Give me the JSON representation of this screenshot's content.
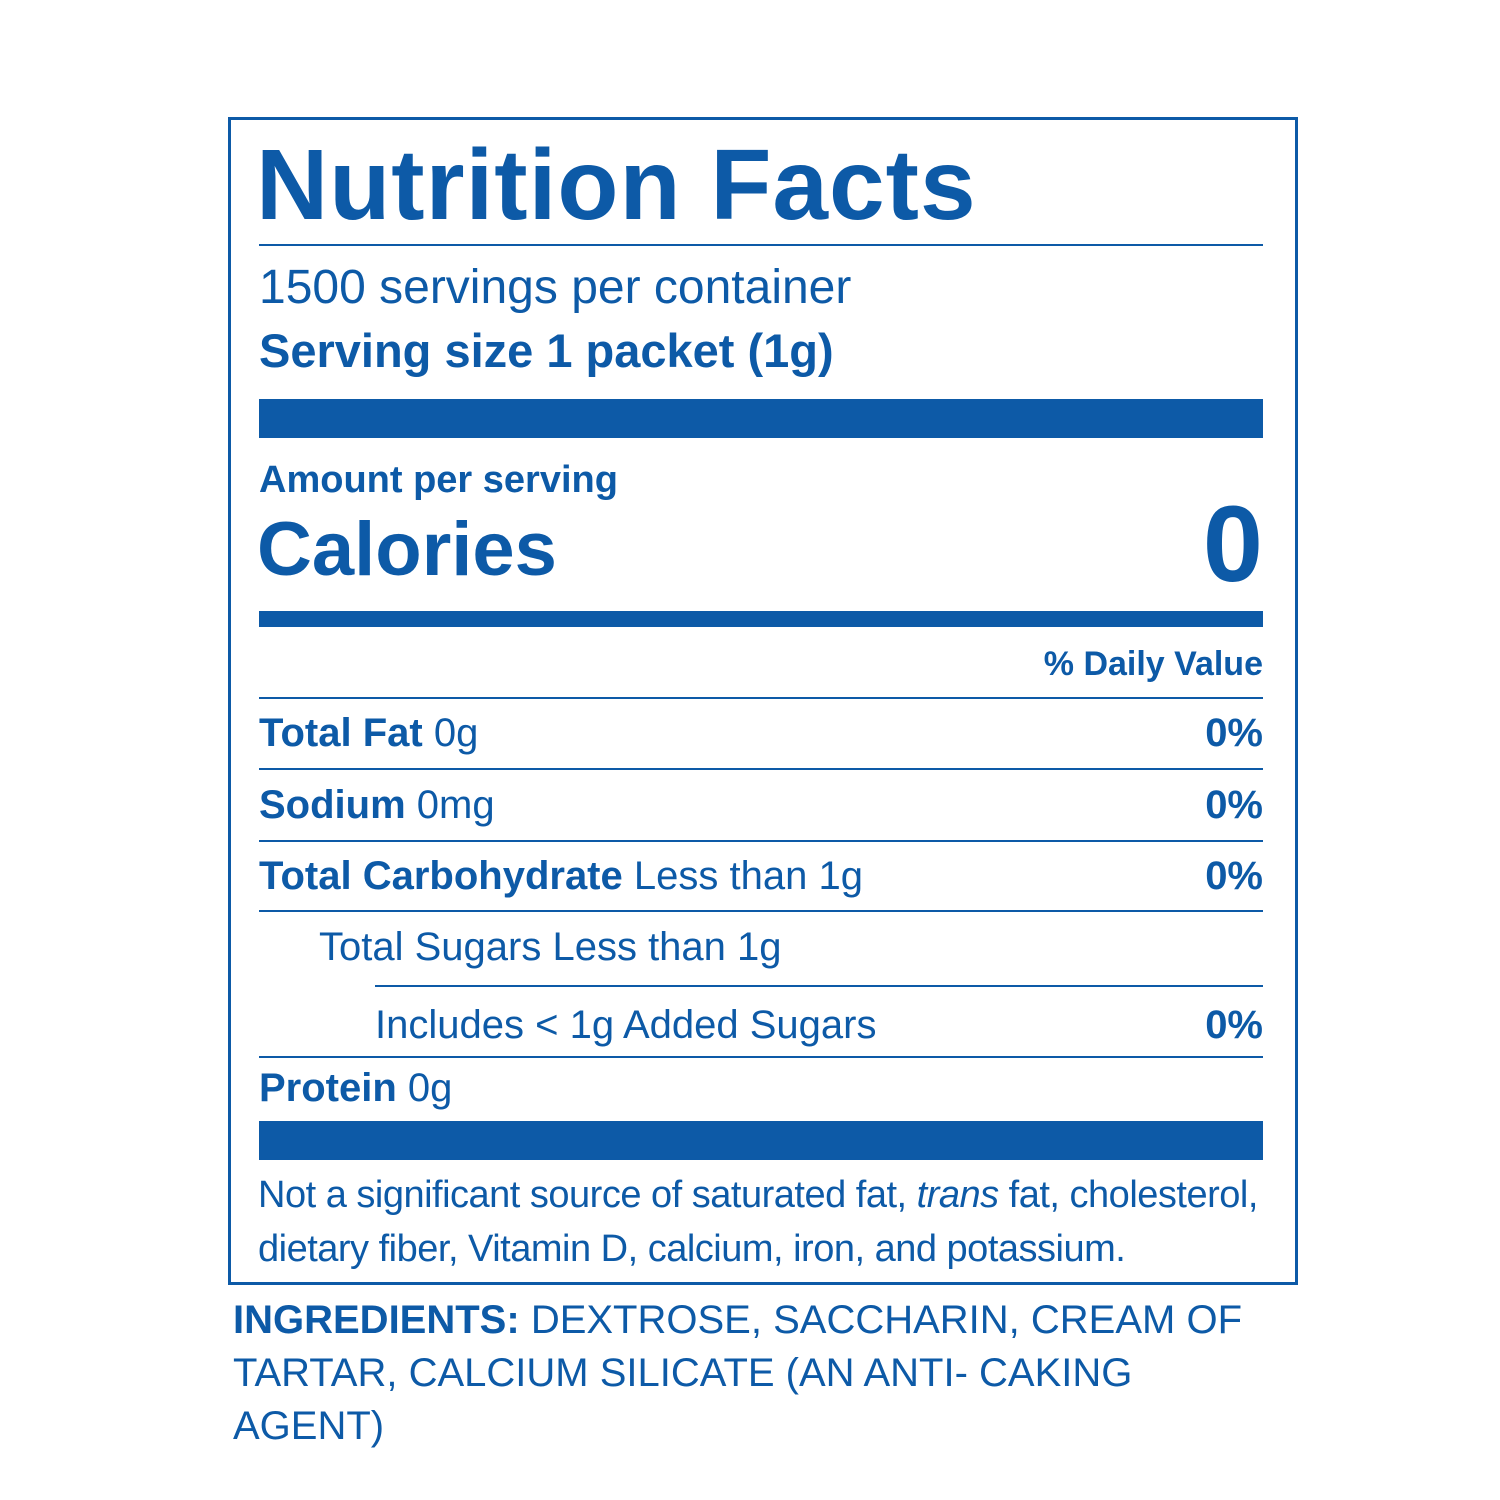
{
  "title": "Nutrition Facts",
  "servings": "1500 servings per container",
  "serving_size": "Serving size 1 packet (1g)",
  "amount_label": "Amount per serving",
  "calories": {
    "label": "Calories",
    "value": "0"
  },
  "dv_header": "% Daily Value",
  "rows": [
    {
      "name": "Total Fat",
      "amount": "0g",
      "dv": "0%"
    },
    {
      "name": "Sodium",
      "amount": "0mg",
      "dv": "0%"
    },
    {
      "name": "Total Carbohydrate",
      "amount": "Less than 1g",
      "dv": "0%"
    },
    {
      "name": "Total Sugars Less than 1g"
    },
    {
      "name": "Includes < 1g Added Sugars",
      "dv": "0%"
    },
    {
      "name": "Protein",
      "amount": "0g"
    }
  ],
  "footnote": {
    "before": "Not a significant source of saturated fat, ",
    "italic": "trans",
    "after": " fat, cholesterol, dietary fiber, Vitamin D, calcium, iron, and potassium."
  },
  "ingredients": {
    "label": "INGREDIENTS:",
    "text": "DEXTROSE, SACCHARIN, CREAM OF TARTAR, CALCIUM SILICATE (AN ANTI- CAKING AGENT)"
  }
}
